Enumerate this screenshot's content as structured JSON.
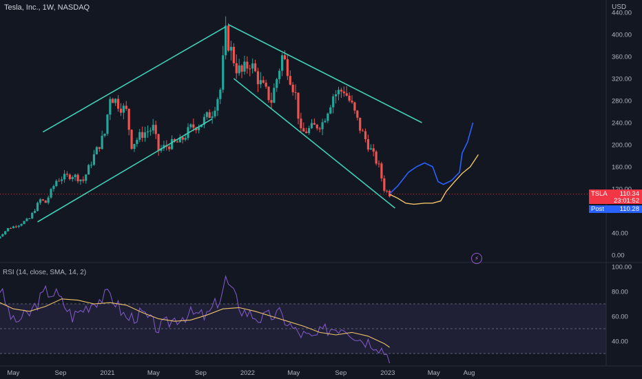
{
  "header": {
    "title": "Tesla, Inc., 1W, NASDAQ",
    "currency": "USD"
  },
  "price_tag": {
    "symbol": "TSLA",
    "price": "110.34",
    "countdown": "23:01:52"
  },
  "post_tag": {
    "label": "Post",
    "price": "110.28"
  },
  "rsi": {
    "title": "RSI (14, close, SMA, 14, 2)"
  },
  "colors": {
    "background": "#131722",
    "up": "#26a69a",
    "down": "#ef5350",
    "trendline": "#3fd0b5",
    "projection_blue": "#2962ff",
    "projection_yellow": "#f0c46a",
    "rsi_line": "#7e57c2",
    "rsi_ma": "#f0c46a"
  },
  "chart_data": [
    {
      "type": "candlestick",
      "title": "Tesla, Inc., 1W, NASDAQ",
      "ylabel": "USD",
      "ylim": [
        -10,
        440
      ],
      "y_ticks": [
        "0.00",
        "40.00",
        "120.00",
        "160.00",
        "200.00",
        "240.00",
        "280.00",
        "320.00",
        "360.00",
        "400.00",
        "440.00"
      ],
      "x_ticks": [
        "May",
        "Sep",
        "2021",
        "May",
        "Sep",
        "2022",
        "May",
        "Sep",
        "2023",
        "May",
        "Aug"
      ],
      "x_tick_dates": [
        "2020-05-01",
        "2020-09-01",
        "2021-01-01",
        "2021-05-01",
        "2021-09-01",
        "2022-01-01",
        "2022-05-01",
        "2022-09-01",
        "2023-01-01",
        "2023-05-01",
        "2023-08-01"
      ],
      "current_price": 110.34,
      "post_market_price": 110.28,
      "close_series": {
        "dates": [
          "2020-03-20",
          "2020-04-17",
          "2020-05-15",
          "2020-06-12",
          "2020-07-10",
          "2020-07-24",
          "2020-08-21",
          "2020-09-04",
          "2020-10-02",
          "2020-10-30",
          "2020-11-27",
          "2020-12-25",
          "2021-01-08",
          "2021-01-22",
          "2021-02-19",
          "2021-03-05",
          "2021-04-02",
          "2021-04-30",
          "2021-05-14",
          "2021-06-11",
          "2021-07-09",
          "2021-08-06",
          "2021-09-03",
          "2021-10-01",
          "2021-10-22",
          "2021-11-05",
          "2021-11-19",
          "2021-12-03",
          "2021-12-17",
          "2022-01-07",
          "2022-02-04",
          "2022-03-04",
          "2022-04-01",
          "2022-04-15",
          "2022-05-06",
          "2022-05-20",
          "2022-06-17",
          "2022-07-15",
          "2022-08-12",
          "2022-09-09",
          "2022-09-30",
          "2022-10-21",
          "2022-11-18",
          "2022-12-09",
          "2022-12-23",
          "2023-01-06"
        ],
        "close": [
          30,
          48,
          55,
          66,
          100,
          95,
          135,
          140,
          145,
          135,
          180,
          220,
          290,
          280,
          260,
          200,
          220,
          230,
          190,
          200,
          205,
          230,
          240,
          260,
          300,
          400,
          370,
          340,
          330,
          350,
          310,
          280,
          360,
          340,
          290,
          220,
          230,
          240,
          290,
          300,
          270,
          230,
          190,
          160,
          120,
          110.34
        ]
      }
    },
    {
      "type": "line",
      "title": "RSI (14, close, SMA, 14, 2)",
      "ylim": [
        20,
        100
      ],
      "y_ticks": [
        "40.00",
        "60.00",
        "80.00",
        "100.00"
      ],
      "band": [
        30,
        70
      ],
      "midline": 50,
      "series": [
        {
          "dates": [
            "2020-03-20",
            "2020-05-01",
            "2020-06-12",
            "2020-07-24",
            "2020-08-21",
            "2020-10-02",
            "2020-11-27",
            "2021-01-08",
            "2021-02-19",
            "2021-04-02",
            "2021-05-14",
            "2021-06-25",
            "2021-08-06",
            "2021-09-17",
            "2021-10-22",
            "2021-11-05",
            "2021-12-17",
            "2022-02-04",
            "2022-03-25",
            "2022-05-06",
            "2022-06-17",
            "2022-07-29",
            "2022-09-09",
            "2022-10-21",
            "2022-12-02",
            "2023-01-06"
          ],
          "values": [
            88,
            55,
            62,
            80,
            78,
            60,
            72,
            78,
            58,
            62,
            50,
            58,
            62,
            60,
            75,
            90,
            65,
            58,
            62,
            48,
            42,
            50,
            52,
            42,
            38,
            28
          ]
        },
        {
          "dates": [
            "2020-03-20",
            "2020-05-01",
            "2020-06-12",
            "2020-07-24",
            "2020-09-04",
            "2020-10-16",
            "2020-11-27",
            "2021-01-08",
            "2021-02-19",
            "2021-04-02",
            "2021-05-14",
            "2021-06-25",
            "2021-08-06",
            "2021-09-17",
            "2021-10-29",
            "2021-12-10",
            "2022-01-21",
            "2022-03-04",
            "2022-04-15",
            "2022-05-27",
            "2022-07-08",
            "2022-08-19",
            "2022-09-30",
            "2022-11-11",
            "2022-12-23",
            "2023-01-06"
          ],
          "values": [
            72,
            66,
            64,
            68,
            74,
            73,
            70,
            71,
            69,
            63,
            58,
            56,
            57,
            61,
            66,
            67,
            64,
            60,
            56,
            52,
            47,
            45,
            47,
            44,
            38,
            35
          ]
        }
      ]
    }
  ]
}
